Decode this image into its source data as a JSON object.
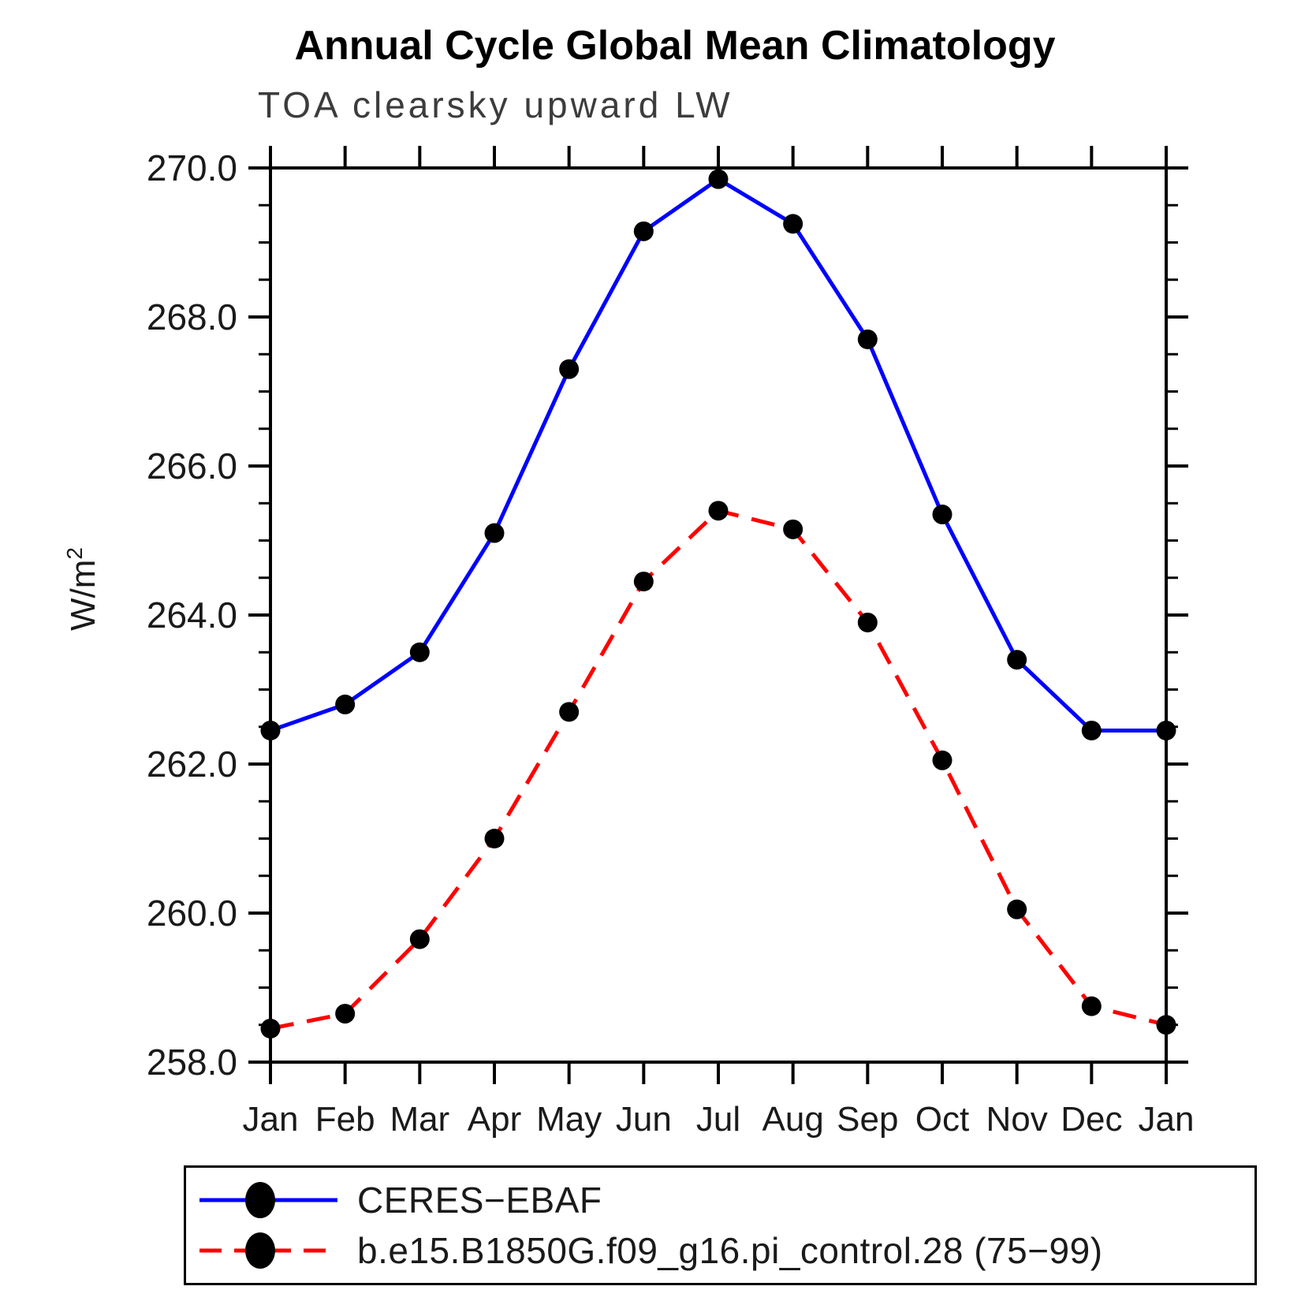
{
  "title": "Annual Cycle Global Mean Climatology",
  "subtitle": "TOA clearsky upward LW",
  "y_axis": {
    "label_base": "W/m",
    "label_exponent": "2",
    "tick_labels": [
      "270.0",
      "268.0",
      "266.0",
      "264.0",
      "262.0",
      "260.0",
      "258.0"
    ]
  },
  "chart_data": {
    "type": "line",
    "title": "Annual Cycle Global Mean Climatology",
    "subtitle": "TOA clearsky upward LW",
    "xlabel": "",
    "ylabel": "W/m²",
    "ylim": [
      258.0,
      270.0
    ],
    "ytick_major": 2.0,
    "ytick_minor": 0.5,
    "grid": false,
    "legend_position": "bottom",
    "x_categories": [
      "Jan",
      "Feb",
      "Mar",
      "Apr",
      "May",
      "Jun",
      "Jul",
      "Aug",
      "Sep",
      "Oct",
      "Nov",
      "Dec",
      "Jan"
    ],
    "series": [
      {
        "name": "CERES−EBAF",
        "color": "#0000ff",
        "line_style": "solid",
        "marker": "filled-circle",
        "marker_color": "#000000",
        "values": [
          262.45,
          262.8,
          263.5,
          265.1,
          267.3,
          269.15,
          269.85,
          269.25,
          267.7,
          265.35,
          263.4,
          262.45,
          262.45
        ]
      },
      {
        "name": "b.e15.B1850G.f09_g16.pi_control.28 (75−99)",
        "color": "#ff0000",
        "line_style": "dashed",
        "marker": "filled-circle",
        "marker_color": "#000000",
        "values": [
          258.45,
          258.65,
          259.65,
          261.0,
          262.7,
          264.45,
          265.4,
          265.15,
          263.9,
          262.05,
          260.05,
          258.75,
          258.5
        ]
      }
    ]
  }
}
